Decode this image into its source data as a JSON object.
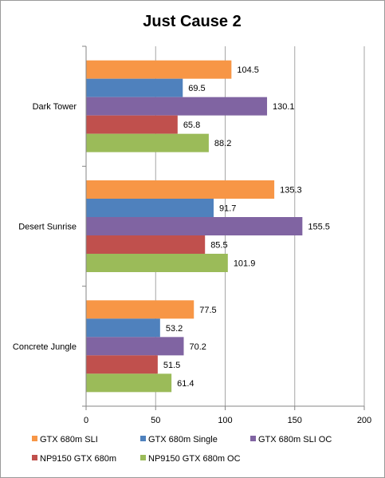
{
  "chart_data": {
    "type": "bar",
    "orientation": "horizontal",
    "title": "Just Cause 2",
    "categories": [
      "Dark Tower",
      "Desert Sunrise",
      "Concrete Jungle"
    ],
    "series": [
      {
        "name": "GTX 680m SLI",
        "color": "#f79646",
        "values": [
          104.5,
          135.3,
          77.5
        ]
      },
      {
        "name": "GTX 680m Single",
        "color": "#4f81bd",
        "values": [
          69.5,
          91.7,
          53.2
        ]
      },
      {
        "name": "GTX 680m SLI OC",
        "color": "#8064a2",
        "values": [
          130.1,
          155.5,
          70.2
        ]
      },
      {
        "name": "NP9150 GTX 680m",
        "color": "#c0504d",
        "values": [
          65.8,
          85.5,
          51.5
        ]
      },
      {
        "name": "NP9150 GTX 680m OC",
        "color": "#9bbb59",
        "values": [
          88.2,
          101.9,
          61.4
        ]
      }
    ],
    "xlim": [
      0,
      200
    ],
    "xticks": [
      0,
      50,
      100,
      150,
      200
    ],
    "grid": true,
    "legend": "bottom"
  }
}
